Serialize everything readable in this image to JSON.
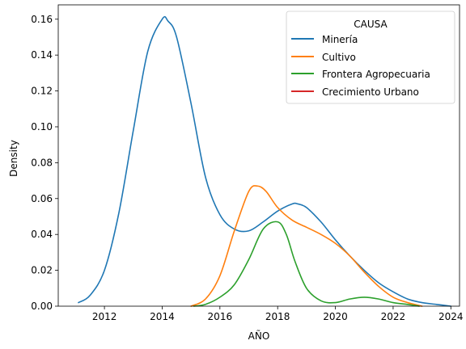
{
  "chart_data": {
    "type": "line",
    "xlabel": "AÑO",
    "ylabel": "Density",
    "xlim": [
      2010.4,
      2024.3
    ],
    "ylim": [
      0,
      0.168
    ],
    "xticks": [
      2012,
      2014,
      2016,
      2018,
      2020,
      2022,
      2024
    ],
    "xtick_labels": [
      "2012",
      "2014",
      "2016",
      "2018",
      "2020",
      "2022",
      "2024"
    ],
    "yticks": [
      0,
      0.02,
      0.04,
      0.06,
      0.08,
      0.1,
      0.12,
      0.14,
      0.16
    ],
    "ytick_labels": [
      "0.00",
      "0.02",
      "0.04",
      "0.06",
      "0.08",
      "0.10",
      "0.12",
      "0.14",
      "0.16"
    ],
    "grid": false,
    "legend": {
      "title": "CAUSA",
      "placement": "top-right"
    },
    "series": [
      {
        "name": "Minería",
        "color": "#1f77b4",
        "x": [
          2011.1,
          2011.5,
          2012.0,
          2012.5,
          2013.0,
          2013.5,
          2014.0,
          2014.2,
          2014.5,
          2015.0,
          2015.5,
          2016.0,
          2016.5,
          2017.0,
          2017.5,
          2018.0,
          2018.5,
          2018.7,
          2019.0,
          2019.5,
          2020.0,
          2020.5,
          2021.0,
          2021.5,
          2022.0,
          2022.5,
          2023.0,
          2023.5,
          2024.0
        ],
        "y": [
          0.002,
          0.006,
          0.02,
          0.052,
          0.098,
          0.142,
          0.16,
          0.159,
          0.15,
          0.113,
          0.072,
          0.051,
          0.043,
          0.042,
          0.047,
          0.053,
          0.057,
          0.057,
          0.055,
          0.047,
          0.037,
          0.028,
          0.02,
          0.013,
          0.008,
          0.004,
          0.002,
          0.001,
          0.0
        ]
      },
      {
        "name": "Cultivo",
        "color": "#ff7f0e",
        "x": [
          2015.0,
          2015.5,
          2016.0,
          2016.5,
          2017.0,
          2017.3,
          2017.6,
          2018.0,
          2018.5,
          2019.0,
          2019.5,
          2020.0,
          2020.5,
          2021.0,
          2021.5,
          2022.0,
          2022.5,
          2023.0
        ],
        "y": [
          0.0,
          0.004,
          0.017,
          0.042,
          0.064,
          0.067,
          0.064,
          0.055,
          0.048,
          0.044,
          0.04,
          0.035,
          0.028,
          0.019,
          0.011,
          0.005,
          0.002,
          0.0
        ]
      },
      {
        "name": "Frontera Agropecuaria",
        "color": "#2ca02c",
        "x": [
          2015.1,
          2015.5,
          2016.0,
          2016.5,
          2017.0,
          2017.5,
          2018.0,
          2018.3,
          2018.6,
          2019.0,
          2019.5,
          2020.0,
          2020.5,
          2021.0,
          2021.5,
          2022.0,
          2022.5,
          2022.9
        ],
        "y": [
          0.0,
          0.001,
          0.005,
          0.012,
          0.026,
          0.043,
          0.047,
          0.04,
          0.025,
          0.01,
          0.003,
          0.002,
          0.004,
          0.005,
          0.004,
          0.002,
          0.001,
          0.0
        ]
      },
      {
        "name": "Crecimiento Urbano",
        "color": "#d62728",
        "x": [],
        "y": []
      }
    ]
  }
}
